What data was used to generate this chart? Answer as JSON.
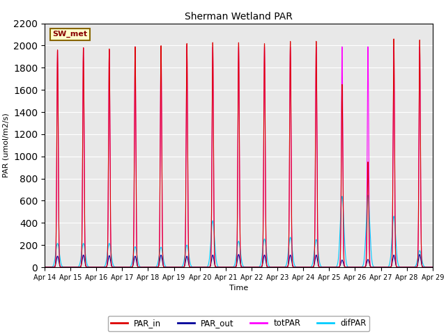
{
  "title": "Sherman Wetland PAR",
  "ylabel": "PAR (umol/m2/s)",
  "xlabel": "Time",
  "ylim": [
    0,
    2200
  ],
  "station_label": "SW_met",
  "background_color": "#e8e8e8",
  "line_colors": {
    "PAR_in": "#dd0000",
    "PAR_out": "#000099",
    "totPAR": "#ff00ff",
    "difPAR": "#00ccff"
  },
  "n_days": 15,
  "peak_PAR_in": [
    1960,
    1980,
    1970,
    1990,
    2000,
    2020,
    2030,
    2030,
    2020,
    2040,
    2040,
    1650,
    950,
    2060,
    2050
  ],
  "peak_totPAR": [
    1960,
    1980,
    1960,
    1990,
    1990,
    2000,
    1990,
    1990,
    1990,
    1990,
    1990,
    1990,
    1990,
    1990,
    1990
  ],
  "peak_PAR_out": [
    100,
    110,
    105,
    100,
    110,
    100,
    110,
    115,
    110,
    110,
    110,
    65,
    70,
    110,
    115
  ],
  "peak_difPAR": [
    215,
    215,
    215,
    185,
    180,
    200,
    420,
    235,
    255,
    270,
    250,
    640,
    650,
    460,
    150
  ],
  "xticklabels": [
    "Apr 14",
    "Apr 15",
    "Apr 16",
    "Apr 17",
    "Apr 18",
    "Apr 19",
    "Apr 20",
    "Apr 21",
    "Apr 22",
    "Apr 23",
    "Apr 24",
    "Apr 25",
    "Apr 26",
    "Apr 27",
    "Apr 28",
    "Apr 29"
  ],
  "yticks": [
    0,
    200,
    400,
    600,
    800,
    1000,
    1200,
    1400,
    1600,
    1800,
    2000,
    2200
  ]
}
